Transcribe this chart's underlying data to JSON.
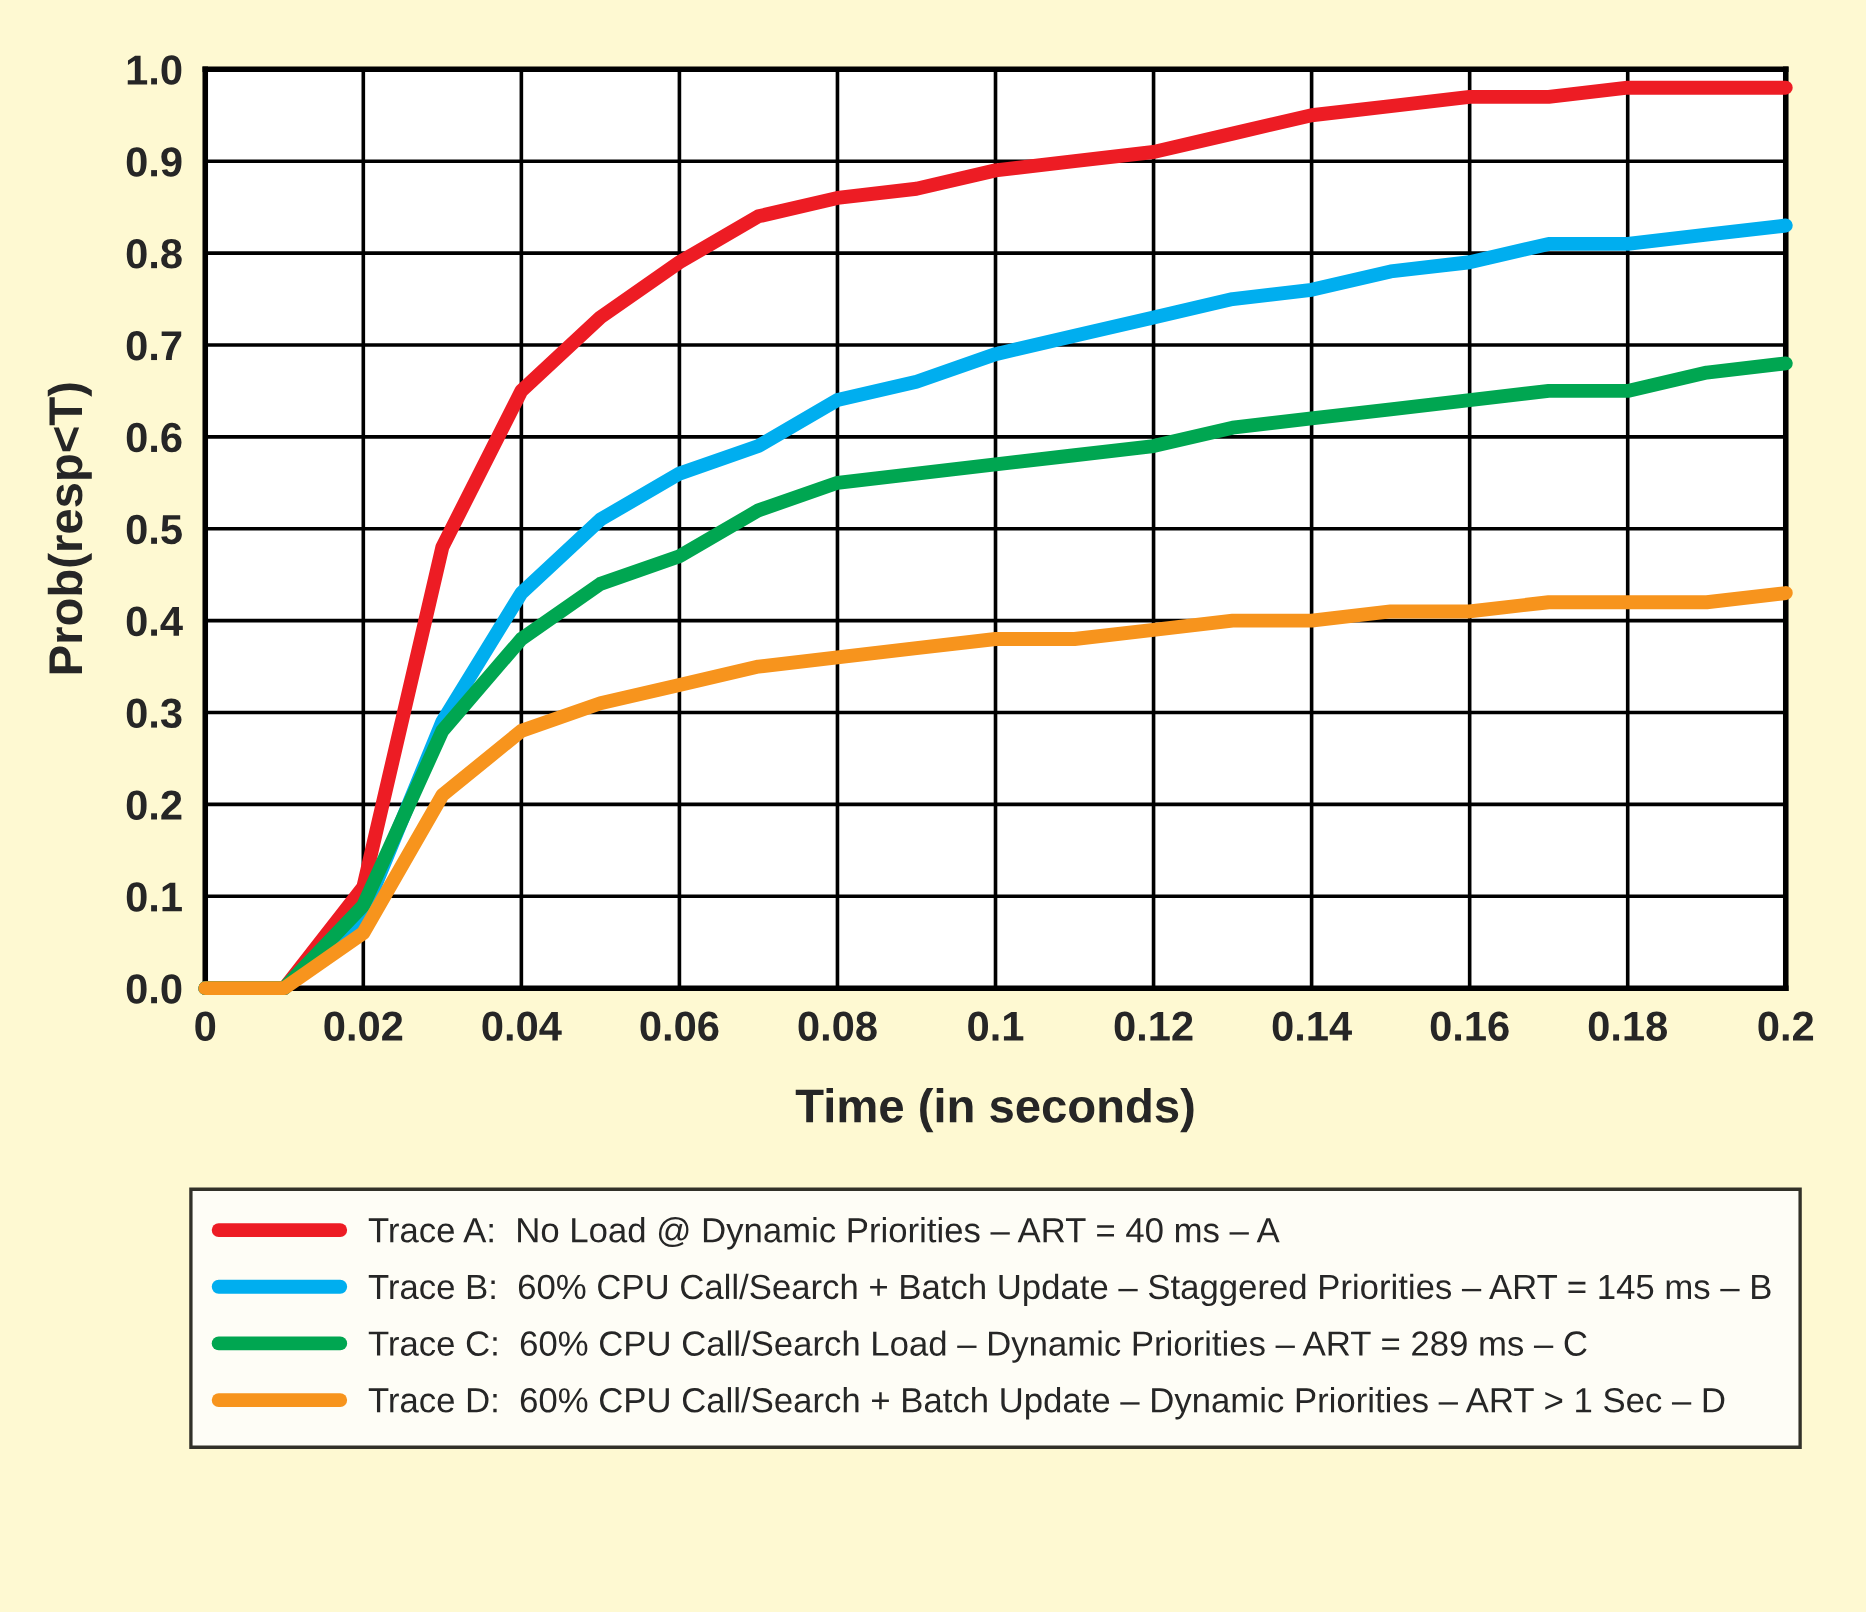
{
  "chart_data": {
    "type": "line",
    "xlabel": "Time (in seconds)",
    "ylabel": "Prob(resp<T)",
    "x": [
      0,
      0.01,
      0.02,
      0.03,
      0.04,
      0.05,
      0.06,
      0.07,
      0.08,
      0.09,
      0.1,
      0.11,
      0.12,
      0.13,
      0.14,
      0.15,
      0.16,
      0.17,
      0.18,
      0.19,
      0.2
    ],
    "series": [
      {
        "name": "Trace A:  No Load @ Dynamic Priorities – ART = 40 ms – A",
        "color": "#ed1c24",
        "values": [
          0,
          0,
          0.11,
          0.48,
          0.65,
          0.73,
          0.79,
          0.84,
          0.86,
          0.87,
          0.89,
          0.9,
          0.91,
          0.93,
          0.95,
          0.96,
          0.97,
          0.97,
          0.98,
          0.98,
          0.98
        ]
      },
      {
        "name": "Trace B:  60% CPU Call/Search + Batch Update – Staggered Priorities – ART = 145 ms – B",
        "color": "#00aeef",
        "values": [
          0,
          0,
          0.08,
          0.29,
          0.43,
          0.51,
          0.56,
          0.59,
          0.64,
          0.66,
          0.69,
          0.71,
          0.73,
          0.75,
          0.76,
          0.78,
          0.79,
          0.81,
          0.81,
          0.82,
          0.83
        ]
      },
      {
        "name": "Trace C:  60% CPU Call/Search Load – Dynamic Priorities – ART = 289 ms – C",
        "color": "#00a651",
        "values": [
          0,
          0,
          0.09,
          0.28,
          0.38,
          0.44,
          0.47,
          0.52,
          0.55,
          0.56,
          0.57,
          0.58,
          0.59,
          0.61,
          0.62,
          0.63,
          0.64,
          0.65,
          0.65,
          0.67,
          0.68
        ]
      },
      {
        "name": "Trace D:  60% CPU Call/Search + Batch Update – Dynamic Priorities – ART > 1 Sec – D",
        "color": "#f7941d",
        "values": [
          0,
          0,
          0.06,
          0.21,
          0.28,
          0.31,
          0.33,
          0.35,
          0.36,
          0.37,
          0.38,
          0.38,
          0.39,
          0.4,
          0.4,
          0.41,
          0.41,
          0.42,
          0.42,
          0.42,
          0.43
        ]
      }
    ],
    "xlim": [
      0,
      0.2
    ],
    "xticks": [
      0,
      0.02,
      0.04,
      0.06,
      0.08,
      0.1,
      0.12,
      0.14,
      0.16,
      0.18,
      0.2
    ],
    "ylim": [
      0,
      1.0
    ],
    "yticks": [
      {
        "value": 0,
        "label": "0.0"
      },
      0.1,
      0.2,
      0.3,
      0.4,
      0.5,
      0.6,
      0.7,
      0.8,
      0.9,
      {
        "value": 1.0,
        "label": "1.0"
      }
    ],
    "grid": true,
    "legend": "bottom",
    "marker": "none",
    "line_style": "solid"
  }
}
